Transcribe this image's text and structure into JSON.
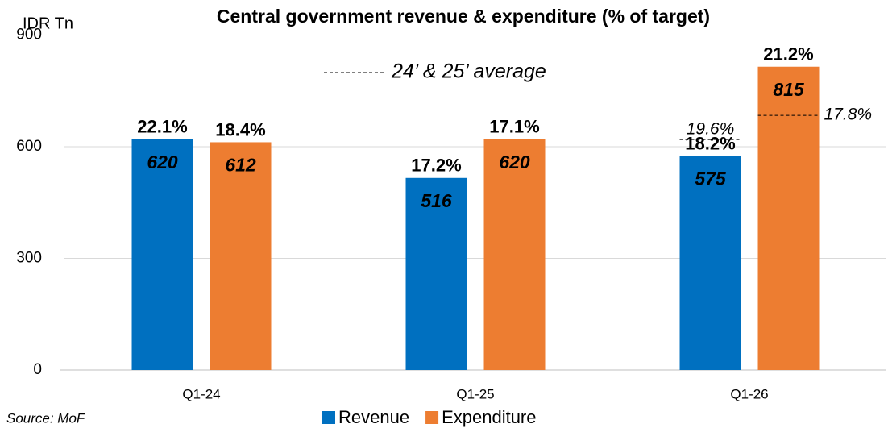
{
  "chart_data": {
    "type": "bar",
    "title": "Central government revenue & expenditure (% of target)",
    "y_axis_label": "IDR Tn",
    "source": "Source: MoF",
    "average_legend": "24’ & 25’ average",
    "categories": [
      "Q1-24",
      "Q1-25",
      "Q1-26"
    ],
    "series": [
      {
        "name": "Revenue",
        "color": "#0070c0",
        "values": [
          620,
          516,
          575
        ],
        "pct": [
          22.1,
          17.2,
          18.2
        ],
        "pct_labels": [
          "22.1%",
          "17.2%",
          "18.2%"
        ],
        "average_pct": [
          null,
          null,
          19.6
        ],
        "average_labels": [
          null,
          null,
          "19.6%"
        ]
      },
      {
        "name": "Expenditure",
        "color": "#ed7d31",
        "values": [
          612,
          620,
          815
        ],
        "pct": [
          18.4,
          17.1,
          21.2
        ],
        "pct_labels": [
          "18.4%",
          "17.1%",
          "21.2%"
        ],
        "average_pct": [
          null,
          null,
          17.8
        ],
        "average_labels": [
          null,
          null,
          "17.8%"
        ]
      }
    ],
    "ylim": [
      0,
      900
    ],
    "yticks": [
      0,
      300,
      600,
      900
    ],
    "grid": true,
    "legend": "bottom"
  }
}
